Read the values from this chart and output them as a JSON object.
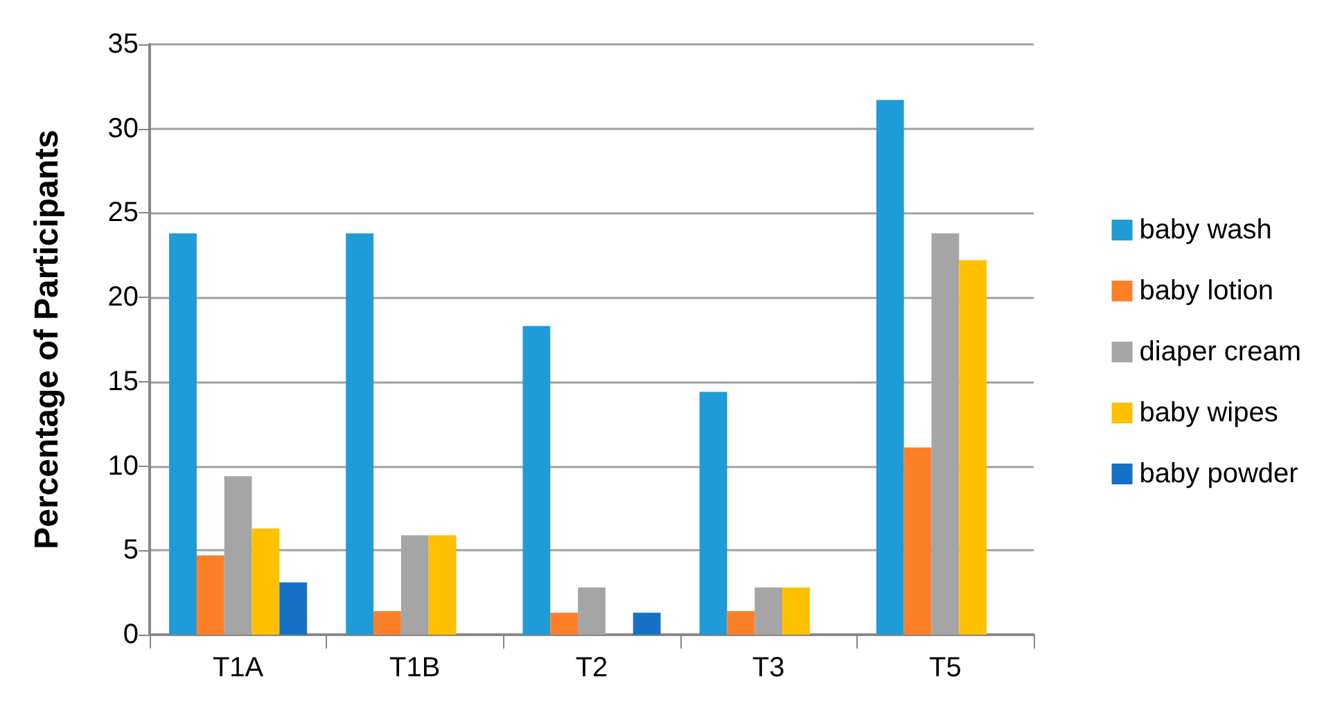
{
  "chart_data": {
    "type": "bar",
    "ylabel": "Percentage of Participants",
    "categories": [
      "T1A",
      "T1B",
      "T2",
      "T3",
      "T5"
    ],
    "series": [
      {
        "name": "baby wash",
        "color": "#1f9bd7",
        "values": [
          23.8,
          23.8,
          18.3,
          14.4,
          31.7
        ]
      },
      {
        "name": "baby lotion",
        "color": "#fd7f28",
        "values": [
          4.7,
          1.4,
          1.3,
          1.4,
          11.1
        ]
      },
      {
        "name": "diaper cream",
        "color": "#a5a5a5",
        "values": [
          9.4,
          5.9,
          2.8,
          2.8,
          23.8
        ]
      },
      {
        "name": "baby wipes",
        "color": "#ffc000",
        "values": [
          6.3,
          5.9,
          null,
          2.8,
          22.2
        ]
      },
      {
        "name": "baby powder",
        "color": "#1670c8",
        "values": [
          3.1,
          null,
          1.3,
          null,
          null
        ]
      }
    ],
    "ylim": [
      0,
      35
    ],
    "yticks": [
      0,
      5,
      10,
      15,
      20,
      25,
      30,
      35
    ],
    "grid": "y",
    "legend": "right"
  }
}
